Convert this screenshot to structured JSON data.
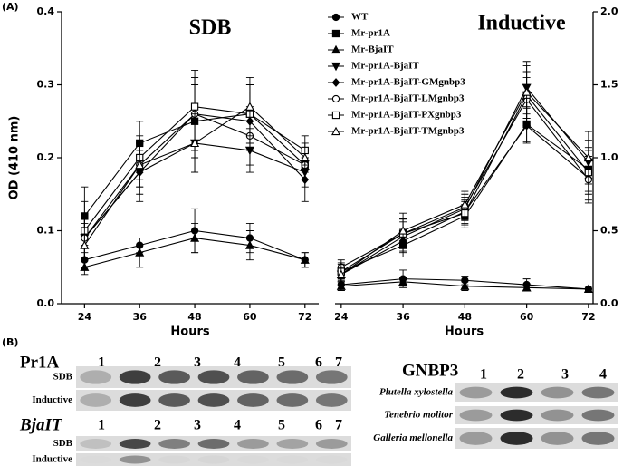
{
  "panel_labels": [
    "(A)",
    "(B)"
  ],
  "chart_data": [
    {
      "type": "line",
      "title": "SDB",
      "xlabel": "Hours",
      "ylabel": "OD (410 nm)",
      "x": [
        24,
        36,
        48,
        60,
        72
      ],
      "xlim": [
        19,
        75
      ],
      "xticks": [
        24,
        36,
        48,
        60,
        72
      ],
      "ylim": [
        0,
        0.4
      ],
      "yticks": [
        {
          "value": 0,
          "label": "0.0"
        },
        0.1,
        0.2,
        0.3,
        0.4
      ],
      "legend": "right",
      "series": [
        {
          "name": "WT",
          "color": "#000000",
          "marker": "circle-filled",
          "values": [
            0.06,
            0.08,
            0.1,
            0.09,
            0.06
          ],
          "errors": [
            0.01,
            0.01,
            0.03,
            0.02,
            0.01
          ]
        },
        {
          "name": "Mr-pr1A",
          "color": "#000000",
          "marker": "square-filled",
          "values": [
            0.12,
            0.22,
            0.25,
            0.26,
            0.19
          ],
          "errors": [
            0.04,
            0.03,
            0.05,
            0.04,
            0.02
          ]
        },
        {
          "name": "Mr-BjaIT",
          "color": "#000000",
          "marker": "triangle-up-filled",
          "values": [
            0.05,
            0.07,
            0.09,
            0.08,
            0.06
          ],
          "errors": [
            0.01,
            0.02,
            0.02,
            0.02,
            0.01
          ]
        },
        {
          "name": "Mr-pr1A-BjaIT",
          "color": "#000000",
          "marker": "triangle-down-filled",
          "values": [
            0.09,
            0.18,
            0.22,
            0.21,
            0.18
          ],
          "errors": [
            0.03,
            0.03,
            0.04,
            0.03,
            0.02
          ]
        },
        {
          "name": "Mr-pr1A-BjaIT-GMgnbp3",
          "color": "#000000",
          "marker": "diamond-filled",
          "values": [
            0.09,
            0.18,
            0.26,
            0.25,
            0.17
          ],
          "errors": [
            0.03,
            0.04,
            0.05,
            0.04,
            0.03
          ]
        },
        {
          "name": "Mr-pr1A-BjaIT-LMgnbp3",
          "color": "#000000",
          "marker": "circle-open",
          "values": [
            0.09,
            0.19,
            0.26,
            0.23,
            0.19
          ],
          "errors": [
            0.03,
            0.03,
            0.05,
            0.04,
            0.02
          ]
        },
        {
          "name": "Mr-pr1A-BjaIT-PXgnbp3",
          "color": "#000000",
          "marker": "square-open",
          "values": [
            0.1,
            0.2,
            0.27,
            0.26,
            0.21
          ],
          "errors": [
            0.04,
            0.03,
            0.05,
            0.04,
            0.02
          ]
        },
        {
          "name": "Mr-pr1A-BjaIT-TMgnbp3",
          "color": "#000000",
          "marker": "triangle-up-open",
          "values": [
            0.08,
            0.19,
            0.22,
            0.27,
            0.2
          ],
          "errors": [
            0.03,
            0.03,
            0.04,
            0.04,
            0.02
          ]
        }
      ]
    },
    {
      "type": "line",
      "title": "Inductive",
      "xlabel": "Hours",
      "x": [
        24,
        36,
        48,
        60,
        72
      ],
      "xlim": [
        22.8,
        72.9
      ],
      "xticks": [
        24,
        36,
        48,
        60,
        72
      ],
      "y2lim": [
        0,
        2.0
      ],
      "y2ticks": [
        {
          "value": 0,
          "label": "0.0"
        },
        0.5,
        {
          "value": 1,
          "label": "1.0"
        },
        1.5,
        {
          "value": 2,
          "label": "2.0"
        }
      ],
      "series": [
        {
          "name": "WT",
          "color": "#000000",
          "marker": "circle-filled",
          "axis": "y2",
          "values": [
            0.13,
            0.17,
            0.16,
            0.13,
            0.1
          ],
          "errors": [
            0.04,
            0.06,
            0.03,
            0.04,
            0.02
          ]
        },
        {
          "name": "Mr-pr1A",
          "color": "#000000",
          "marker": "square-filled",
          "axis": "y2",
          "values": [
            0.22,
            0.4,
            0.6,
            1.23,
            0.92
          ],
          "errors": [
            0.06,
            0.08,
            0.08,
            0.12,
            0.15
          ]
        },
        {
          "name": "Mr-BjaIT",
          "color": "#000000",
          "marker": "triangle-up-filled",
          "axis": "y2",
          "values": [
            0.12,
            0.15,
            0.12,
            0.11,
            0.1
          ],
          "errors": [
            0.03,
            0.03,
            0.03,
            0.02,
            0.02
          ]
        },
        {
          "name": "Mr-pr1A-BjaIT",
          "color": "#000000",
          "marker": "triangle-down-filled",
          "axis": "y2",
          "values": [
            0.2,
            0.46,
            0.65,
            1.48,
            0.97
          ],
          "errors": [
            0.05,
            0.1,
            0.08,
            0.18,
            0.15
          ]
        },
        {
          "name": "Mr-pr1A-BjaIT-GMgnbp3",
          "color": "#000000",
          "marker": "diamond-filled",
          "axis": "y2",
          "values": [
            0.2,
            0.43,
            0.63,
            1.22,
            0.86
          ],
          "errors": [
            0.05,
            0.08,
            0.08,
            0.12,
            0.15
          ]
        },
        {
          "name": "Mr-pr1A-BjaIT-LMgnbp3",
          "color": "#000000",
          "marker": "circle-open",
          "axis": "y2",
          "values": [
            0.25,
            0.48,
            0.66,
            1.4,
            0.85
          ],
          "errors": [
            0.05,
            0.1,
            0.09,
            0.15,
            0.16
          ]
        },
        {
          "name": "Mr-pr1A-BjaIT-PXgnbp3",
          "color": "#000000",
          "marker": "square-open",
          "axis": "y2",
          "values": [
            0.22,
            0.48,
            0.62,
            1.43,
            0.9
          ],
          "errors": [
            0.05,
            0.1,
            0.08,
            0.16,
            0.15
          ]
        },
        {
          "name": "Mr-pr1A-BjaIT-TMgnbp3",
          "color": "#000000",
          "marker": "triangle-up-open",
          "axis": "y2",
          "values": [
            0.2,
            0.5,
            0.68,
            1.45,
            1.0
          ],
          "errors": [
            0.05,
            0.12,
            0.09,
            0.18,
            0.18
          ]
        }
      ]
    }
  ],
  "blots": [
    {
      "title": "Pr1A",
      "lanes": [
        "1",
        "2",
        "3",
        "4",
        "5",
        "6",
        "7"
      ],
      "rows": [
        "SDB",
        "Inductive"
      ]
    },
    {
      "title": "BjaIT",
      "lanes": [
        "1",
        "2",
        "3",
        "4",
        "5",
        "6",
        "7"
      ],
      "rows": [
        "SDB",
        "Inductive"
      ]
    },
    {
      "title": "GNBP3",
      "lanes": [
        "1",
        "2",
        "3",
        "4"
      ],
      "rows": [
        "Plutella xylostella",
        "Tenebrio molitor",
        "Galleria mellonella"
      ]
    }
  ]
}
